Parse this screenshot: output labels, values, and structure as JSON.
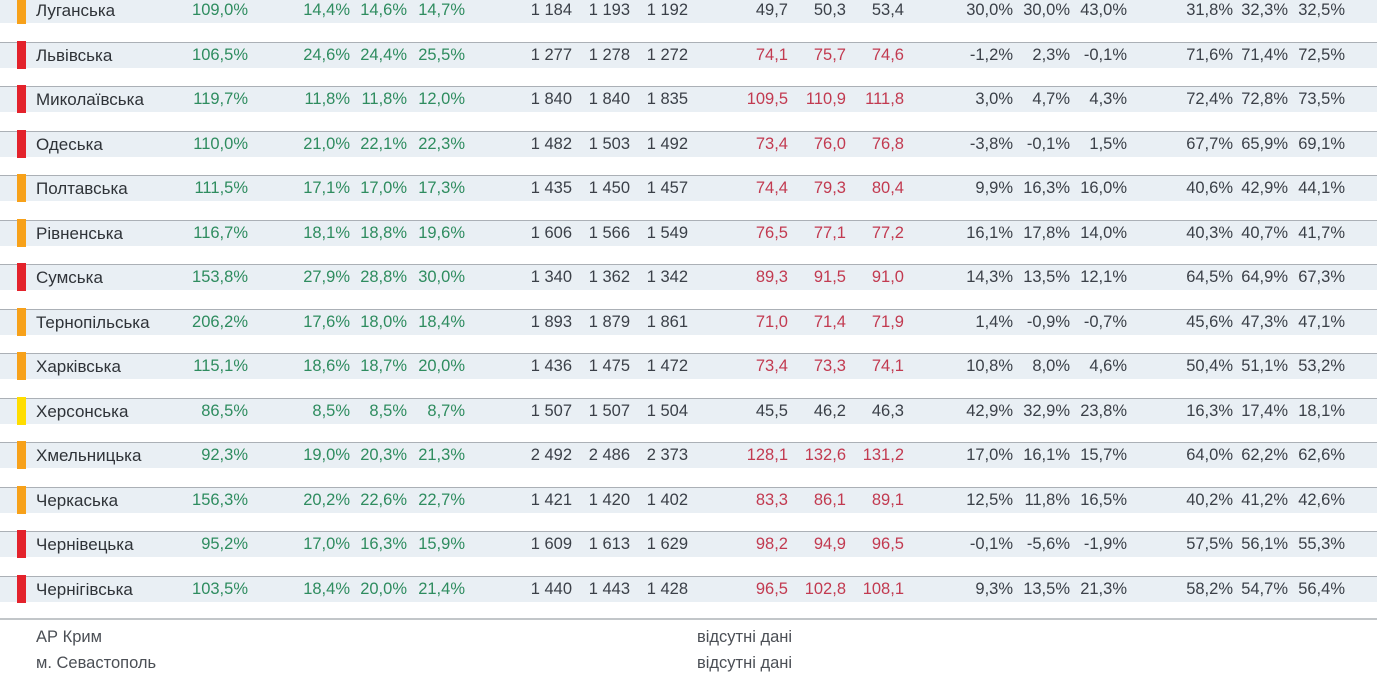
{
  "colors": {
    "marker": {
      "orange": "#F7A11A",
      "red": "#E3222B",
      "yellow": "#FFDD00"
    },
    "green_text": "#2E8C5F",
    "red_text": "#C23A50",
    "dark_text": "#3B4048",
    "band_bg": "#E9EFF4",
    "band_border": "#ABB0B6",
    "separator": "#C2C6C9",
    "footer_text": "#4B4F55"
  },
  "chart_data": {
    "type": "table",
    "legend_marker_colors": [
      "orange",
      "red",
      "yellow"
    ],
    "rows": [
      {
        "marker": "orange",
        "region": "Луганська",
        "col1": "109,0%",
        "cols2_4": [
          "14,4%",
          "14,6%",
          "14,7%"
        ],
        "cols5_7": [
          "1 184",
          "1 193",
          "1 192"
        ],
        "cols8_10": [
          "49,7",
          "50,3",
          "53,4"
        ],
        "cols8_10_style": "dark",
        "cols11_13": [
          "30,0%",
          "30,0%",
          "43,0%"
        ],
        "cols14_16": [
          "31,8%",
          "32,3%",
          "32,5%"
        ]
      },
      {
        "marker": "red",
        "region": "Львівська",
        "col1": "106,5%",
        "cols2_4": [
          "24,6%",
          "24,4%",
          "25,5%"
        ],
        "cols5_7": [
          "1 277",
          "1 278",
          "1 272"
        ],
        "cols8_10": [
          "74,1",
          "75,7",
          "74,6"
        ],
        "cols8_10_style": "red",
        "cols11_13": [
          "-1,2%",
          "2,3%",
          "-0,1%"
        ],
        "cols14_16": [
          "71,6%",
          "71,4%",
          "72,5%"
        ]
      },
      {
        "marker": "red",
        "region": "Миколаївська",
        "col1": "119,7%",
        "cols2_4": [
          "11,8%",
          "11,8%",
          "12,0%"
        ],
        "cols5_7": [
          "1 840",
          "1 840",
          "1 835"
        ],
        "cols8_10": [
          "109,5",
          "110,9",
          "111,8"
        ],
        "cols8_10_style": "red",
        "cols11_13": [
          "3,0%",
          "4,7%",
          "4,3%"
        ],
        "cols14_16": [
          "72,4%",
          "72,8%",
          "73,5%"
        ]
      },
      {
        "marker": "red",
        "region": "Одеська",
        "col1": "110,0%",
        "cols2_4": [
          "21,0%",
          "22,1%",
          "22,3%"
        ],
        "cols5_7": [
          "1 482",
          "1 503",
          "1 492"
        ],
        "cols8_10": [
          "73,4",
          "76,0",
          "76,8"
        ],
        "cols8_10_style": "red",
        "cols11_13": [
          "-3,8%",
          "-0,1%",
          "1,5%"
        ],
        "cols14_16": [
          "67,7%",
          "65,9%",
          "69,1%"
        ]
      },
      {
        "marker": "orange",
        "region": "Полтавська",
        "col1": "111,5%",
        "cols2_4": [
          "17,1%",
          "17,0%",
          "17,3%"
        ],
        "cols5_7": [
          "1 435",
          "1 450",
          "1 457"
        ],
        "cols8_10": [
          "74,4",
          "79,3",
          "80,4"
        ],
        "cols8_10_style": "red",
        "cols11_13": [
          "9,9%",
          "16,3%",
          "16,0%"
        ],
        "cols14_16": [
          "40,6%",
          "42,9%",
          "44,1%"
        ]
      },
      {
        "marker": "orange",
        "region": "Рівненська",
        "col1": "116,7%",
        "cols2_4": [
          "18,1%",
          "18,8%",
          "19,6%"
        ],
        "cols5_7": [
          "1 606",
          "1 566",
          "1 549"
        ],
        "cols8_10": [
          "76,5",
          "77,1",
          "77,2"
        ],
        "cols8_10_style": "red",
        "cols11_13": [
          "16,1%",
          "17,8%",
          "14,0%"
        ],
        "cols14_16": [
          "40,3%",
          "40,7%",
          "41,7%"
        ]
      },
      {
        "marker": "red",
        "region": "Сумська",
        "col1": "153,8%",
        "cols2_4": [
          "27,9%",
          "28,8%",
          "30,0%"
        ],
        "cols5_7": [
          "1 340",
          "1 362",
          "1 342"
        ],
        "cols8_10": [
          "89,3",
          "91,5",
          "91,0"
        ],
        "cols8_10_style": "red",
        "cols11_13": [
          "14,3%",
          "13,5%",
          "12,1%"
        ],
        "cols14_16": [
          "64,5%",
          "64,9%",
          "67,3%"
        ]
      },
      {
        "marker": "orange",
        "region": "Тернопільська",
        "col1": "206,2%",
        "cols2_4": [
          "17,6%",
          "18,0%",
          "18,4%"
        ],
        "cols5_7": [
          "1 893",
          "1 879",
          "1 861"
        ],
        "cols8_10": [
          "71,0",
          "71,4",
          "71,9"
        ],
        "cols8_10_style": "red",
        "cols11_13": [
          "1,4%",
          "-0,9%",
          "-0,7%"
        ],
        "cols14_16": [
          "45,6%",
          "47,3%",
          "47,1%"
        ]
      },
      {
        "marker": "orange",
        "region": "Харківська",
        "col1": "115,1%",
        "cols2_4": [
          "18,6%",
          "18,7%",
          "20,0%"
        ],
        "cols5_7": [
          "1 436",
          "1 475",
          "1 472"
        ],
        "cols8_10": [
          "73,4",
          "73,3",
          "74,1"
        ],
        "cols8_10_style": "red",
        "cols11_13": [
          "10,8%",
          "8,0%",
          "4,6%"
        ],
        "cols14_16": [
          "50,4%",
          "51,1%",
          "53,2%"
        ]
      },
      {
        "marker": "yellow",
        "region": "Херсонська",
        "col1": "86,5%",
        "cols2_4": [
          "8,5%",
          "8,5%",
          "8,7%"
        ],
        "cols5_7": [
          "1 507",
          "1 507",
          "1 504"
        ],
        "cols8_10": [
          "45,5",
          "46,2",
          "46,3"
        ],
        "cols8_10_style": "dark",
        "cols11_13": [
          "42,9%",
          "32,9%",
          "23,8%"
        ],
        "cols14_16": [
          "16,3%",
          "17,4%",
          "18,1%"
        ]
      },
      {
        "marker": "orange",
        "region": "Хмельницька",
        "col1": "92,3%",
        "cols2_4": [
          "19,0%",
          "20,3%",
          "21,3%"
        ],
        "cols5_7": [
          "2 492",
          "2 486",
          "2 373"
        ],
        "cols8_10": [
          "128,1",
          "132,6",
          "131,2"
        ],
        "cols8_10_style": "red",
        "cols11_13": [
          "17,0%",
          "16,1%",
          "15,7%"
        ],
        "cols14_16": [
          "64,0%",
          "62,2%",
          "62,6%"
        ]
      },
      {
        "marker": "orange",
        "region": "Черкаська",
        "col1": "156,3%",
        "cols2_4": [
          "20,2%",
          "22,6%",
          "22,7%"
        ],
        "cols5_7": [
          "1 421",
          "1 420",
          "1 402"
        ],
        "cols8_10": [
          "83,3",
          "86,1",
          "89,1"
        ],
        "cols8_10_style": "red",
        "cols11_13": [
          "12,5%",
          "11,8%",
          "16,5%"
        ],
        "cols14_16": [
          "40,2%",
          "41,2%",
          "42,6%"
        ]
      },
      {
        "marker": "red",
        "region": "Чернівецька",
        "col1": "95,2%",
        "cols2_4": [
          "17,0%",
          "16,3%",
          "15,9%"
        ],
        "cols5_7": [
          "1 609",
          "1 613",
          "1 629"
        ],
        "cols8_10": [
          "98,2",
          "94,9",
          "96,5"
        ],
        "cols8_10_style": "red",
        "cols11_13": [
          "-0,1%",
          "-5,6%",
          "-1,9%"
        ],
        "cols14_16": [
          "57,5%",
          "56,1%",
          "55,3%"
        ]
      },
      {
        "marker": "red",
        "region": "Чернігівська",
        "col1": "103,5%",
        "cols2_4": [
          "18,4%",
          "20,0%",
          "21,4%"
        ],
        "cols5_7": [
          "1 440",
          "1 443",
          "1 428"
        ],
        "cols8_10": [
          "96,5",
          "102,8",
          "108,1"
        ],
        "cols8_10_style": "red",
        "cols11_13": [
          "9,3%",
          "13,5%",
          "21,3%"
        ],
        "cols14_16": [
          "58,2%",
          "54,7%",
          "56,4%"
        ]
      }
    ]
  },
  "footer": {
    "rows": [
      {
        "label": "АР Крим",
        "note": "відсутні дані"
      },
      {
        "label": "м. Севастополь",
        "note": "відсутні дані"
      }
    ]
  }
}
